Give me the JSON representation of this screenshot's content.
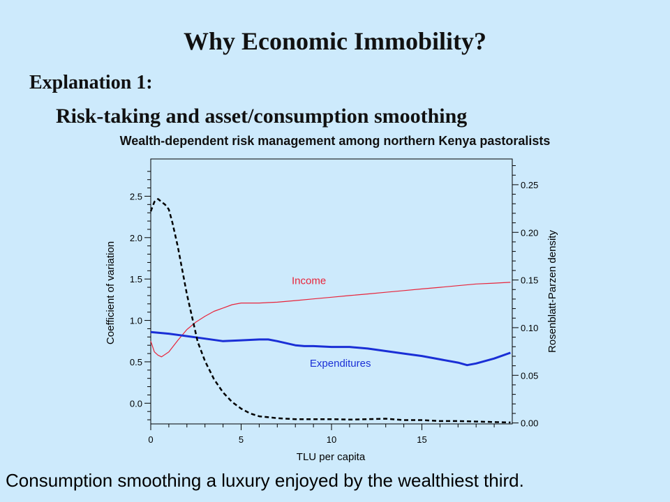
{
  "slide": {
    "title": "Why Economic Immobility?",
    "subtitle1": "Explanation 1:",
    "subtitle2": "Risk-taking and asset/consumption smoothing",
    "footer": "Consumption smoothing a luxury enjoyed by the wealthiest third."
  },
  "chart_data": {
    "type": "line",
    "title": "Wealth-dependent risk management among northern Kenya pastoralists",
    "xlabel": "TLU per capita",
    "ylabel": "Coefficient of variation",
    "y2label": "Rosenblatt-Parzen density",
    "xlim": [
      0,
      20
    ],
    "ylim": [
      -0.25,
      2.95
    ],
    "y2lim": [
      -0.001,
      0.277
    ],
    "xticks": [
      0,
      5,
      10,
      15
    ],
    "xtick_labels": [
      "0",
      "5",
      "10",
      "15"
    ],
    "yticks": [
      0.0,
      0.5,
      1.0,
      1.5,
      2.0,
      2.5
    ],
    "ytick_labels": [
      "0.0",
      "0.5",
      "1.0",
      "1.5",
      "2.0",
      "2.5"
    ],
    "y2ticks": [
      0.0,
      0.05,
      0.1,
      0.15,
      0.2,
      0.25
    ],
    "y2tick_labels": [
      "0.00",
      "0.05",
      "0.10",
      "0.15",
      "0.20",
      "0.25"
    ],
    "series": [
      {
        "name": "Income",
        "axis": "left",
        "color": "#e8243a",
        "style": "solid",
        "label_at": [
          7.8,
          1.44
        ],
        "x": [
          0,
          0.2,
          0.4,
          0.6,
          1.0,
          1.5,
          2.0,
          2.5,
          3.0,
          3.5,
          4.0,
          4.5,
          5.0,
          5.5,
          6.0,
          7.0,
          8.0,
          9.0,
          10.0,
          11.0,
          12.0,
          13.0,
          14.0,
          15.0,
          16.0,
          17.0,
          18.0,
          19.0,
          19.9
        ],
        "y": [
          0.75,
          0.62,
          0.58,
          0.56,
          0.62,
          0.76,
          0.89,
          0.98,
          1.05,
          1.11,
          1.15,
          1.19,
          1.21,
          1.21,
          1.21,
          1.22,
          1.24,
          1.26,
          1.28,
          1.3,
          1.32,
          1.34,
          1.36,
          1.38,
          1.4,
          1.42,
          1.44,
          1.45,
          1.46
        ]
      },
      {
        "name": "Expenditures",
        "axis": "left",
        "color": "#1a2fd6",
        "style": "thick",
        "label_at": [
          8.8,
          0.44
        ],
        "x": [
          0,
          1.0,
          2.0,
          3.0,
          4.0,
          5.0,
          6.0,
          6.5,
          7.0,
          8.0,
          8.5,
          9.0,
          10.0,
          11.0,
          12.0,
          13.0,
          14.0,
          15.0,
          16.0,
          17.0,
          17.5,
          18.0,
          19.0,
          19.9
        ],
        "y": [
          0.86,
          0.84,
          0.81,
          0.78,
          0.75,
          0.76,
          0.77,
          0.77,
          0.75,
          0.7,
          0.69,
          0.69,
          0.68,
          0.68,
          0.66,
          0.63,
          0.6,
          0.57,
          0.53,
          0.49,
          0.46,
          0.48,
          0.54,
          0.61
        ]
      },
      {
        "name": "",
        "axis": "right",
        "color": "#000000",
        "style": "dashed",
        "x": [
          0,
          0.2,
          0.4,
          0.6,
          0.8,
          1.0,
          1.2,
          1.5,
          1.8,
          2.0,
          2.3,
          2.6,
          3.0,
          3.5,
          4.0,
          4.5,
          5.0,
          5.5,
          6.0,
          6.5,
          7.0,
          8.0,
          9.0,
          10.0,
          11.0,
          12.0,
          13.0,
          14.0,
          15.0,
          16.0,
          17.0,
          18.0,
          19.0,
          19.9
        ],
        "y": [
          0.222,
          0.232,
          0.235,
          0.232,
          0.229,
          0.224,
          0.21,
          0.185,
          0.155,
          0.135,
          0.11,
          0.085,
          0.065,
          0.046,
          0.032,
          0.022,
          0.015,
          0.01,
          0.007,
          0.006,
          0.005,
          0.004,
          0.004,
          0.004,
          0.0035,
          0.004,
          0.0045,
          0.003,
          0.003,
          0.002,
          0.002,
          0.0015,
          0.001,
          0.0005
        ]
      }
    ]
  }
}
